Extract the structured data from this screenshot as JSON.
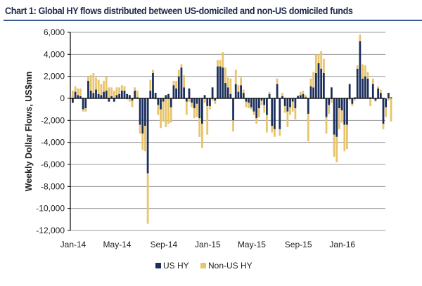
{
  "title": "Chart 1: Global HY flows distributed between US-domiciled and non-US domiciled funds",
  "colors": {
    "us_hy": "#1c2f5c",
    "non_us_hy": "#e8c46a",
    "grid": "#9a9a9a",
    "title_rule": "#3a5a8c"
  },
  "chart_data": {
    "type": "bar",
    "stacked": true,
    "title": "Chart 1: Global HY flows distributed between US-domiciled and non-US domiciled funds",
    "xlabel": "",
    "ylabel": "Weekly Dollar Flows, US$mn",
    "ylim": [
      -12000,
      6000
    ],
    "yticks": [
      6000,
      4000,
      2000,
      0,
      -2000,
      -4000,
      -6000,
      -8000,
      -10000,
      -12000
    ],
    "ytick_labels": [
      "6,000",
      "4,000",
      "2,000",
      "0",
      "-2,000",
      "-4,000",
      "-6,000",
      "-8,000",
      "-10,000",
      "-12,000"
    ],
    "xtick_labels": [
      "Jan-14",
      "May-14",
      "Sep-14",
      "Jan-15",
      "May-15",
      "Sep-15",
      "Jan-16"
    ],
    "xtick_weeks": [
      0,
      17,
      35,
      52,
      69,
      87,
      104
    ],
    "grid": true,
    "legend_position": "bottom-center",
    "frequency": "weekly",
    "series": [
      {
        "name": "US HY",
        "values": [
          -400,
          600,
          300,
          200,
          -1000,
          -900,
          1600,
          700,
          500,
          800,
          400,
          300,
          600,
          700,
          -300,
          200,
          -300,
          300,
          400,
          700,
          700,
          400,
          300,
          -200,
          700,
          100,
          -2400,
          -3200,
          -2500,
          -6800,
          700,
          2300,
          500,
          -600,
          -1000,
          -300,
          300,
          400,
          -800,
          1200,
          900,
          2000,
          2800,
          1000,
          -300,
          900,
          -400,
          -900,
          -500,
          -1800,
          -2300,
          300,
          -700,
          -700,
          1000,
          -200,
          2900,
          2900,
          2800,
          1400,
          1000,
          400,
          -2000,
          1300,
          600,
          1200,
          500,
          -300,
          -400,
          -800,
          -1200,
          -1800,
          -900,
          -200,
          -600,
          -1500,
          400,
          -2500,
          -2800,
          1300,
          -2800,
          200,
          -700,
          -1200,
          -800,
          -300,
          -900,
          200,
          300,
          400,
          100,
          -1400,
          1100,
          1000,
          2300,
          3200,
          2700,
          2300,
          -1700,
          -600,
          1000,
          -3300,
          -3500,
          -900,
          -1100,
          -2400,
          -2400,
          1300,
          -500,
          100,
          2700,
          5200,
          1800,
          2000,
          1800,
          100,
          1300,
          -200,
          900,
          500,
          -2300,
          -800,
          500,
          100
        ],
        "values_nonus": [
          700,
          500,
          600,
          700,
          -200,
          -300,
          400,
          1400,
          1800,
          1100,
          1300,
          1000,
          1000,
          1300,
          1000,
          800,
          700,
          700,
          600,
          500,
          400,
          -100,
          -300,
          -600,
          300,
          600,
          -800,
          -1500,
          -2300,
          -4600,
          1000,
          300,
          -100,
          -900,
          -1700,
          -1800,
          -2600,
          -2300,
          -1400,
          400,
          700,
          600,
          300,
          1100,
          -1200,
          -300,
          -400,
          -900,
          -1200,
          -1700,
          -2200,
          -400,
          -2600,
          -300,
          -200,
          -300,
          600,
          600,
          1400,
          1400,
          900,
          1400,
          -1000,
          1300,
          600,
          700,
          300,
          -500,
          -500,
          -200,
          -300,
          -500,
          -800,
          -400,
          -700,
          -1600,
          200,
          -600,
          -700,
          500,
          -600,
          300,
          -600,
          -1400,
          -700,
          -900,
          -1000,
          100,
          300,
          300,
          200,
          -2500,
          700,
          1400,
          1700,
          800,
          1600,
          1300,
          -1500,
          -800,
          -400,
          -2000,
          -2300,
          -1900,
          -1100,
          -2400,
          -2200,
          -200,
          -200,
          -200,
          300,
          600,
          1300,
          1000,
          600,
          -700,
          500,
          -100,
          200,
          300,
          -500,
          -900,
          -200,
          -2100
        ]
      },
      {
        "name": "Non-US HY"
      }
    ]
  }
}
